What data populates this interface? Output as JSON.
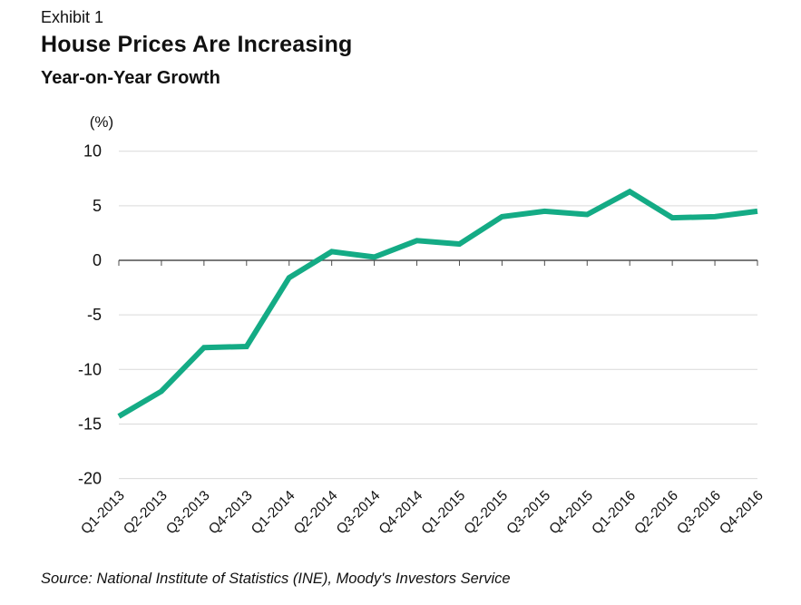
{
  "header": {
    "exhibit_label": "Exhibit 1",
    "title": "House Prices Are Increasing",
    "subtitle": "Year-on-Year Growth"
  },
  "chart_data": {
    "type": "line",
    "unit_label": "(%)",
    "categories": [
      "Q1-2013",
      "Q2-2013",
      "Q3-2013",
      "Q4-2013",
      "Q1-2014",
      "Q2-2014",
      "Q3-2014",
      "Q4-2014",
      "Q1-2015",
      "Q2-2015",
      "Q3-2015",
      "Q4-2015",
      "Q1-2016",
      "Q2-2016",
      "Q3-2016",
      "Q4-2016"
    ],
    "values": [
      -14.3,
      -12.0,
      -8.0,
      -7.9,
      -1.6,
      0.8,
      0.3,
      1.8,
      1.5,
      4.0,
      4.5,
      4.2,
      6.3,
      3.9,
      4.0,
      4.5
    ],
    "yticks": [
      10,
      5,
      0,
      -5,
      -10,
      -15,
      -20
    ],
    "ylim": [
      -20,
      10
    ],
    "grid": true,
    "legend": "none",
    "colors": {
      "line": "#14ab85",
      "gridline": "#d9d9d9",
      "zero_axis": "#4d4d4d",
      "text": "#111111"
    }
  },
  "footer": {
    "source": "Source: National Institute of Statistics (INE), Moody's Investors Service"
  }
}
